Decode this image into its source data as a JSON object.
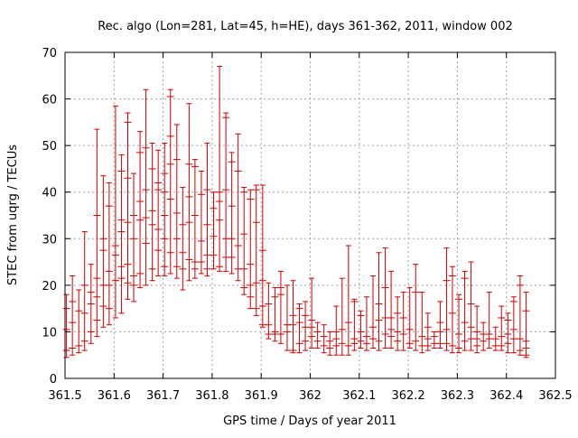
{
  "chart_data": {
    "type": "scatter",
    "style": "error-bars",
    "title": "Rec. algo (Lon=281, Lat=45, h=HE), days 361-362, 2011, window 002",
    "xlabel": "GPS time / Days of year 2011",
    "ylabel": "STEC from uqrg / TECUs",
    "xlim": [
      361.5,
      362.5
    ],
    "ylim": [
      0,
      70
    ],
    "grid": true,
    "legend": "none",
    "color": "#cc0000",
    "x_ticks": [
      361.5,
      361.6,
      361.7,
      361.8,
      361.9,
      362.0,
      362.1,
      362.2,
      362.3,
      362.4,
      362.5
    ],
    "x_tick_labels": [
      "361.5",
      "361.6",
      "361.7",
      "361.8",
      "361.9",
      "362",
      "362.1",
      "362.2",
      "362.3",
      "362.4",
      "362.5"
    ],
    "y_ticks": [
      0,
      10,
      20,
      30,
      40,
      50,
      60,
      70
    ],
    "y_tick_labels": [
      "0",
      "10",
      "20",
      "30",
      "40",
      "50",
      "60",
      "70"
    ],
    "series": [
      {
        "points": [
          {
            "x": 361.503,
            "ylow": 4.5,
            "yhigh": 18.0,
            "marks": [
              6.0,
              10.5,
              15.0
            ]
          },
          {
            "x": 361.515,
            "ylow": 5.0,
            "yhigh": 22.0,
            "marks": [
              6.5,
              12.0,
              16.5
            ]
          },
          {
            "x": 361.528,
            "ylow": 5.5,
            "yhigh": 19.0,
            "marks": [
              7.0,
              14.5
            ]
          },
          {
            "x": 361.54,
            "ylow": 6.0,
            "yhigh": 31.5,
            "marks": [
              8.0,
              14.0,
              20.0
            ]
          },
          {
            "x": 361.553,
            "ylow": 7.5,
            "yhigh": 24.5,
            "marks": [
              10.0,
              16.0,
              18.5
            ]
          },
          {
            "x": 361.565,
            "ylow": 9.0,
            "yhigh": 53.5,
            "marks": [
              12.5,
              17.5,
              21.5,
              35.0
            ]
          },
          {
            "x": 361.578,
            "ylow": 11.0,
            "yhigh": 43.5,
            "marks": [
              15.5,
              20.0,
              27.5,
              30.0
            ]
          },
          {
            "x": 361.59,
            "ylow": 11.5,
            "yhigh": 42.0,
            "marks": [
              15.0,
              20.0,
              23.0,
              37.0
            ]
          },
          {
            "x": 361.603,
            "ylow": 13.0,
            "yhigh": 58.5,
            "marks": [
              21.0,
              26.5,
              28.5
            ]
          },
          {
            "x": 361.615,
            "ylow": 14.0,
            "yhigh": 48.0,
            "marks": [
              21.5,
              24.0,
              31.5,
              34.0,
              44.5
            ]
          },
          {
            "x": 361.628,
            "ylow": 17.0,
            "yhigh": 57.0,
            "marks": [
              20.5,
              24.5,
              33.5,
              43.0,
              55.0
            ]
          },
          {
            "x": 361.64,
            "ylow": 16.5,
            "yhigh": 44.0,
            "marks": [
              20.0,
              22.0,
              30.0,
              35.0
            ]
          },
          {
            "x": 361.653,
            "ylow": 19.5,
            "yhigh": 53.0,
            "marks": [
              22.5,
              34.0,
              38.0,
              48.5
            ]
          },
          {
            "x": 361.665,
            "ylow": 20.0,
            "yhigh": 62.0,
            "marks": [
              29.0,
              34.5,
              40.5,
              49.5
            ]
          },
          {
            "x": 361.678,
            "ylow": 21.0,
            "yhigh": 50.5,
            "marks": [
              23.5,
              33.0,
              36.0,
              45.0
            ]
          },
          {
            "x": 361.69,
            "ylow": 22.0,
            "yhigh": 49.0,
            "marks": [
              27.5,
              32.0,
              40.5,
              42.0
            ]
          },
          {
            "x": 361.703,
            "ylow": 22.0,
            "yhigh": 50.5,
            "marks": [
              24.0,
              30.0,
              35.0,
              40.0,
              44.0
            ]
          },
          {
            "x": 361.715,
            "ylow": 22.5,
            "yhigh": 62.0,
            "marks": [
              27.0,
              38.5,
              46.0,
              52.0,
              60.5
            ]
          },
          {
            "x": 361.728,
            "ylow": 21.5,
            "yhigh": 54.5,
            "marks": [
              24.0,
              30.0,
              35.5,
              47.0
            ]
          },
          {
            "x": 361.74,
            "ylow": 19.0,
            "yhigh": 41.0,
            "marks": [
              23.5,
              27.0,
              33.0
            ]
          },
          {
            "x": 361.753,
            "ylow": 21.0,
            "yhigh": 59.0,
            "marks": [
              25.5,
              33.5,
              39.0,
              46.0
            ]
          },
          {
            "x": 361.765,
            "ylow": 21.5,
            "yhigh": 47.0,
            "marks": [
              23.5,
              25.0,
              35.0,
              45.5
            ]
          },
          {
            "x": 361.778,
            "ylow": 22.5,
            "yhigh": 44.5,
            "marks": [
              25.0,
              29.5,
              39.5
            ]
          },
          {
            "x": 361.79,
            "ylow": 22.0,
            "yhigh": 50.5,
            "marks": [
              23.5,
              26.5,
              33.0,
              40.5
            ]
          },
          {
            "x": 361.803,
            "ylow": 23.5,
            "yhigh": 40.0,
            "marks": [
              26.5,
              30.5,
              36.5
            ]
          },
          {
            "x": 361.815,
            "ylow": 23.0,
            "yhigh": 67.0,
            "marks": [
              24.0,
              34.0,
              38.0,
              40.0
            ]
          },
          {
            "x": 361.828,
            "ylow": 23.0,
            "yhigh": 57.0,
            "marks": [
              26.0,
              30.0,
              40.5,
              56.0
            ]
          },
          {
            "x": 361.84,
            "ylow": 22.5,
            "yhigh": 48.5,
            "marks": [
              26.0,
              30.0,
              37.0,
              46.5
            ]
          },
          {
            "x": 361.853,
            "ylow": 21.0,
            "yhigh": 52.5,
            "marks": [
              23.5,
              28.5,
              44.5
            ]
          },
          {
            "x": 361.865,
            "ylow": 18.0,
            "yhigh": 41.0,
            "marks": [
              19.5,
              23.5,
              31.0,
              40.0
            ]
          },
          {
            "x": 361.878,
            "ylow": 15.0,
            "yhigh": 40.5,
            "marks": [
              17.5,
              20.0,
              24.5,
              38.5
            ]
          },
          {
            "x": 361.89,
            "ylow": 13.5,
            "yhigh": 41.5,
            "marks": [
              15.0,
              20.5,
              33.5,
              40.5
            ]
          },
          {
            "x": 361.903,
            "ylow": 11.0,
            "yhigh": 41.5,
            "marks": [
              11.5,
              15.5,
              21.0,
              27.5
            ]
          },
          {
            "x": 361.915,
            "ylow": 8.5,
            "yhigh": 20.5,
            "marks": [
              9.5,
              11.5,
              16.0
            ]
          },
          {
            "x": 361.928,
            "ylow": 8.0,
            "yhigh": 19.5,
            "marks": [
              9.5,
              10.0,
              17.5
            ]
          },
          {
            "x": 361.94,
            "ylow": 7.5,
            "yhigh": 23.0,
            "marks": [
              9.5,
              18.0,
              19.5
            ]
          },
          {
            "x": 361.953,
            "ylow": 6.0,
            "yhigh": 20.0,
            "marks": [
              10.0,
              11.5
            ]
          },
          {
            "x": 361.965,
            "ylow": 5.5,
            "yhigh": 21.0,
            "marks": [
              6.0,
              11.5,
              13.5
            ]
          },
          {
            "x": 361.978,
            "ylow": 5.5,
            "yhigh": 16.0,
            "marks": [
              7.5,
              12.0,
              15.0
            ]
          },
          {
            "x": 361.99,
            "ylow": 6.0,
            "yhigh": 16.5,
            "marks": [
              8.0,
              11.0,
              13.5
            ]
          },
          {
            "x": 362.003,
            "ylow": 6.5,
            "yhigh": 21.5,
            "marks": [
              9.0,
              11.0,
              12.5
            ]
          },
          {
            "x": 362.015,
            "ylow": 6.5,
            "yhigh": 12.0,
            "marks": [
              8.0,
              10.0
            ]
          },
          {
            "x": 362.028,
            "ylow": 5.5,
            "yhigh": 11.5,
            "marks": [
              7.0,
              9.0
            ]
          },
          {
            "x": 362.04,
            "ylow": 5.0,
            "yhigh": 10.0,
            "marks": [
              6.5,
              8.0
            ]
          },
          {
            "x": 362.053,
            "ylow": 5.0,
            "yhigh": 15.5,
            "marks": [
              7.0,
              8.5,
              10.0
            ]
          },
          {
            "x": 362.065,
            "ylow": 5.0,
            "yhigh": 21.5,
            "marks": [
              7.5,
              10.5
            ]
          },
          {
            "x": 362.078,
            "ylow": 5.0,
            "yhigh": 28.5,
            "marks": [
              7.0,
              12.0
            ]
          },
          {
            "x": 362.09,
            "ylow": 6.0,
            "yhigh": 17.0,
            "marks": [
              7.5,
              8.5,
              16.5
            ]
          },
          {
            "x": 362.103,
            "ylow": 6.5,
            "yhigh": 14.5,
            "marks": [
              8.0,
              10.0,
              13.5
            ]
          },
          {
            "x": 362.115,
            "ylow": 6.0,
            "yhigh": 17.5,
            "marks": [
              7.5,
              9.0
            ]
          },
          {
            "x": 362.128,
            "ylow": 6.5,
            "yhigh": 22.0,
            "marks": [
              8.5,
              11.0
            ]
          },
          {
            "x": 362.14,
            "ylow": 6.0,
            "yhigh": 27.0,
            "marks": [
              8.0,
              12.5,
              16.0
            ]
          },
          {
            "x": 362.153,
            "ylow": 6.5,
            "yhigh": 28.0,
            "marks": [
              9.5,
              13.0,
              19.5
            ]
          },
          {
            "x": 362.165,
            "ylow": 6.5,
            "yhigh": 23.0,
            "marks": [
              9.0,
              10.5,
              13.0
            ]
          },
          {
            "x": 362.178,
            "ylow": 6.0,
            "yhigh": 17.5,
            "marks": [
              8.0,
              10.0,
              14.0
            ]
          },
          {
            "x": 362.19,
            "ylow": 6.0,
            "yhigh": 18.5,
            "marks": [
              9.5,
              13.0
            ]
          },
          {
            "x": 362.203,
            "ylow": 6.5,
            "yhigh": 19.5,
            "marks": [
              7.5,
              10.5
            ]
          },
          {
            "x": 362.215,
            "ylow": 6.0,
            "yhigh": 24.5,
            "marks": [
              8.0,
              18.5
            ]
          },
          {
            "x": 362.228,
            "ylow": 5.5,
            "yhigh": 18.5,
            "marks": [
              7.0,
              9.0
            ]
          },
          {
            "x": 362.24,
            "ylow": 6.0,
            "yhigh": 14.0,
            "marks": [
              7.0,
              8.5,
              11.0
            ]
          },
          {
            "x": 362.253,
            "ylow": 6.5,
            "yhigh": 10.0,
            "marks": [
              7.5,
              9.0
            ]
          },
          {
            "x": 362.265,
            "ylow": 6.5,
            "yhigh": 16.5,
            "marks": [
              7.5,
              10.0,
              12.0
            ]
          },
          {
            "x": 362.278,
            "ylow": 6.0,
            "yhigh": 28.0,
            "marks": [
              7.5,
              10.5,
              21.0
            ]
          },
          {
            "x": 362.29,
            "ylow": 5.5,
            "yhigh": 24.0,
            "marks": [
              7.0,
              14.0,
              22.0
            ]
          },
          {
            "x": 362.303,
            "ylow": 5.5,
            "yhigh": 18.0,
            "marks": [
              6.5,
              9.5,
              17.0
            ]
          },
          {
            "x": 362.315,
            "ylow": 6.0,
            "yhigh": 23.0,
            "marks": [
              8.0,
              12.0,
              21.5
            ]
          },
          {
            "x": 362.328,
            "ylow": 6.0,
            "yhigh": 25.0,
            "marks": [
              8.5,
              11.0,
              16.0
            ]
          },
          {
            "x": 362.34,
            "ylow": 5.5,
            "yhigh": 15.5,
            "marks": [
              7.0,
              8.5,
              10.0
            ]
          },
          {
            "x": 362.353,
            "ylow": 6.0,
            "yhigh": 12.0,
            "marks": [
              8.0,
              9.5
            ]
          },
          {
            "x": 362.365,
            "ylow": 6.5,
            "yhigh": 18.5,
            "marks": [
              8.5,
              9.5
            ]
          },
          {
            "x": 362.378,
            "ylow": 6.0,
            "yhigh": 11.0,
            "marks": [
              7.0,
              8.5
            ]
          },
          {
            "x": 362.39,
            "ylow": 6.0,
            "yhigh": 15.5,
            "marks": [
              7.0,
              9.0,
              13.0
            ]
          },
          {
            "x": 362.403,
            "ylow": 5.5,
            "yhigh": 14.0,
            "marks": [
              7.5,
              9.5,
              12.5
            ]
          },
          {
            "x": 362.415,
            "ylow": 5.5,
            "yhigh": 17.5,
            "marks": [
              8.5,
              10.5,
              16.5
            ]
          },
          {
            "x": 362.428,
            "ylow": 5.0,
            "yhigh": 22.0,
            "marks": [
              6.0,
              8.5,
              20.0
            ]
          },
          {
            "x": 362.44,
            "ylow": 4.5,
            "yhigh": 18.5,
            "marks": [
              5.0,
              6.5,
              8.0,
              14.5
            ]
          }
        ]
      }
    ]
  }
}
